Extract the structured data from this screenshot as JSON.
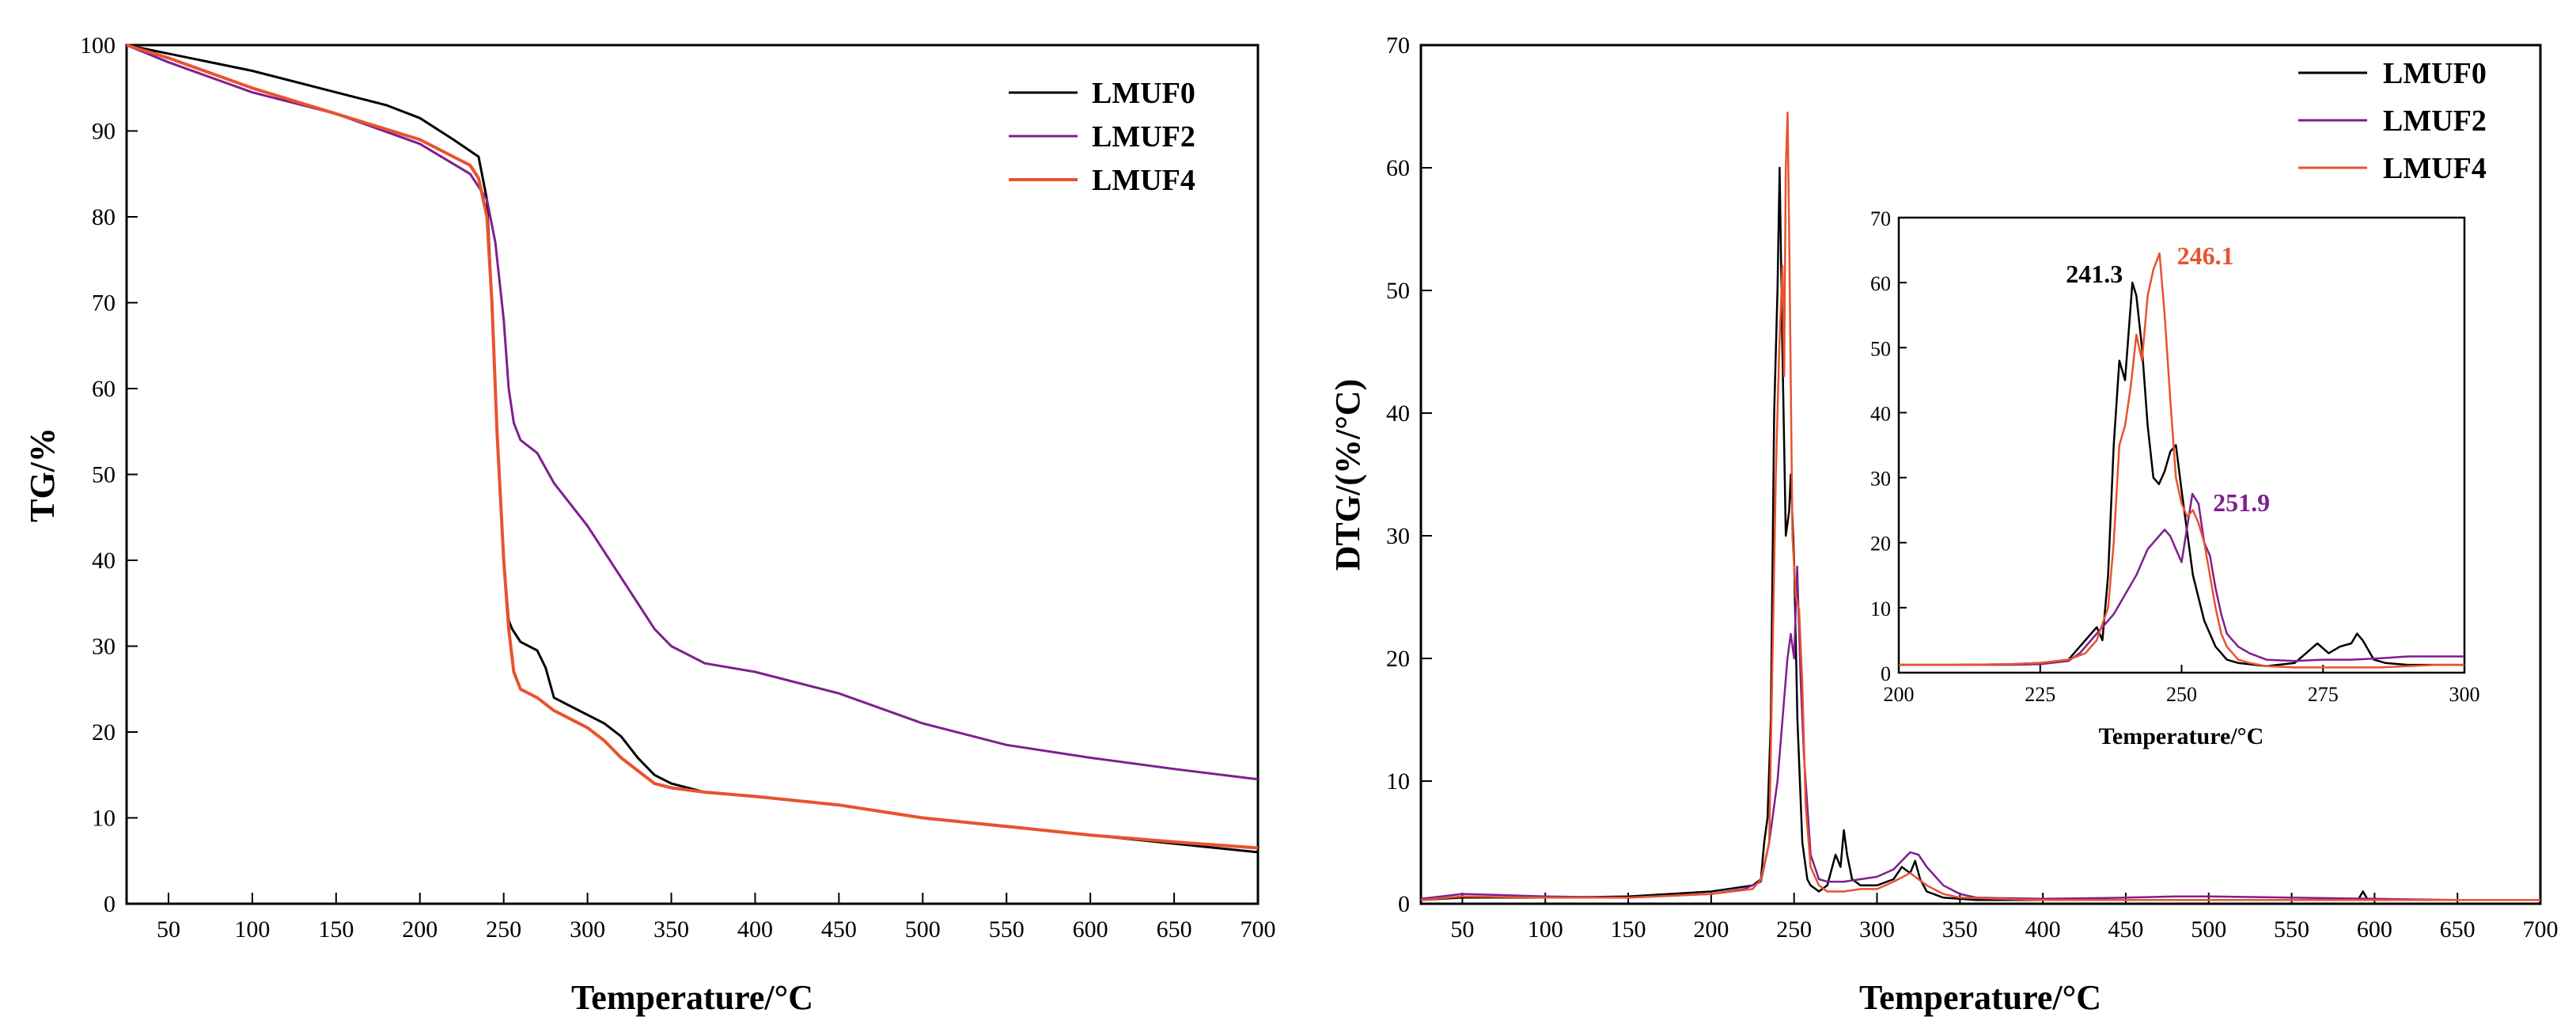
{
  "colors": {
    "LMUF0": "#000000",
    "LMUF2": "#7f1f8f",
    "LMUF4": "#e8532e"
  },
  "chart_data": [
    {
      "id": "tg",
      "type": "line",
      "title": "",
      "xlabel": "Temperature/°C",
      "ylabel": "TG/%",
      "xlim": [
        25,
        700
      ],
      "ylim": [
        0,
        100
      ],
      "xticks": [
        50,
        100,
        150,
        200,
        250,
        300,
        350,
        400,
        450,
        500,
        550,
        600,
        650,
        700
      ],
      "yticks": [
        0,
        10,
        20,
        30,
        40,
        50,
        60,
        70,
        80,
        90,
        100
      ],
      "legend": "top-right",
      "grid": false,
      "series": [
        {
          "name": "LMUF0",
          "x": [
            25,
            50,
            100,
            150,
            180,
            200,
            220,
            235,
            240,
            243,
            246,
            250,
            253,
            255,
            260,
            270,
            275,
            280,
            290,
            300,
            310,
            320,
            330,
            340,
            350,
            370,
            400,
            450,
            500,
            550,
            600,
            650,
            700
          ],
          "y": [
            100,
            99,
            97,
            94.5,
            93,
            91.5,
            89,
            87,
            82,
            70,
            55,
            40,
            33,
            32,
            30.5,
            29.5,
            27.5,
            24,
            23,
            22,
            21,
            19.5,
            17,
            15,
            14,
            13,
            12.5,
            11.5,
            10,
            9,
            8,
            7,
            6
          ]
        },
        {
          "name": "LMUF2",
          "x": [
            25,
            50,
            100,
            150,
            200,
            230,
            240,
            245,
            250,
            253,
            256,
            260,
            270,
            280,
            300,
            320,
            340,
            350,
            370,
            400,
            450,
            500,
            550,
            600,
            650,
            700
          ],
          "y": [
            100,
            98,
            94.5,
            92,
            88.5,
            85,
            82,
            77,
            68,
            60,
            56,
            54,
            52.5,
            49,
            44,
            38,
            32,
            30,
            28,
            27,
            24.5,
            21,
            18.5,
            17,
            15.7,
            14.5
          ]
        },
        {
          "name": "LMUF4",
          "x": [
            25,
            50,
            100,
            150,
            200,
            230,
            235,
            240,
            243,
            246,
            250,
            253,
            256,
            260,
            270,
            280,
            290,
            300,
            310,
            320,
            330,
            340,
            350,
            370,
            400,
            450,
            500,
            550,
            600,
            650,
            700
          ],
          "y": [
            100,
            98.5,
            95,
            92,
            89,
            86,
            84.5,
            80,
            70,
            55,
            40,
            32,
            27,
            25,
            24,
            22.5,
            21.5,
            20.5,
            19,
            17,
            15.5,
            14,
            13.5,
            13,
            12.5,
            11.5,
            10,
            9,
            8,
            7.2,
            6.5
          ]
        }
      ]
    },
    {
      "id": "dtg",
      "type": "line",
      "title": "",
      "xlabel": "Temperature/°C",
      "ylabel": "DTG/(%/°C)",
      "xlim": [
        25,
        700
      ],
      "ylim": [
        0,
        70
      ],
      "xticks": [
        50,
        100,
        150,
        200,
        250,
        300,
        350,
        400,
        450,
        500,
        550,
        600,
        650,
        700
      ],
      "yticks": [
        0,
        10,
        20,
        30,
        40,
        50,
        60,
        70
      ],
      "legend": "top-right",
      "grid": false,
      "series": [
        {
          "name": "LMUF0",
          "x": [
            25,
            50,
            100,
            150,
            200,
            225,
            230,
            232,
            234,
            236,
            238,
            240,
            241.3,
            243,
            245,
            247,
            248,
            250,
            252,
            255,
            258,
            260,
            265,
            270,
            275,
            278,
            280,
            282,
            285,
            290,
            300,
            310,
            315,
            320,
            323,
            326,
            330,
            340,
            350,
            360,
            400,
            450,
            500,
            550,
            590,
            593,
            596,
            600,
            650,
            700
          ],
          "y": [
            0.3,
            0.5,
            0.5,
            0.6,
            1,
            1.5,
            2,
            5,
            7,
            15,
            40,
            50,
            60,
            45,
            30,
            32,
            35,
            28,
            15,
            5,
            2,
            1.5,
            1,
            1.5,
            4,
            3,
            6,
            4,
            2,
            1.5,
            1.5,
            2,
            3,
            2.5,
            3.5,
            2,
            1,
            0.5,
            0.4,
            0.3,
            0.3,
            0.3,
            0.3,
            0.3,
            0.3,
            1,
            0.3,
            0.3,
            0.3,
            0.3
          ]
        },
        {
          "name": "LMUF2",
          "x": [
            25,
            50,
            100,
            150,
            200,
            220,
            230,
            235,
            240,
            243,
            246,
            248,
            250,
            251.9,
            254,
            256,
            258,
            260,
            265,
            270,
            280,
            290,
            300,
            310,
            320,
            325,
            330,
            340,
            350,
            360,
            400,
            450,
            480,
            500,
            550,
            600,
            650,
            700
          ],
          "y": [
            0.4,
            0.8,
            0.6,
            0.5,
            0.8,
            1.2,
            1.8,
            5,
            10,
            15,
            20,
            22,
            20,
            27.5,
            18,
            12,
            8,
            4,
            2,
            1.8,
            1.8,
            2,
            2.2,
            2.8,
            4.2,
            4,
            3,
            1.5,
            0.8,
            0.5,
            0.4,
            0.5,
            0.6,
            0.6,
            0.5,
            0.4,
            0.3,
            0.3
          ]
        },
        {
          "name": "LMUF4",
          "x": [
            25,
            50,
            100,
            150,
            200,
            225,
            230,
            235,
            237,
            239,
            241,
            243,
            244,
            245,
            246.1,
            247,
            249,
            251,
            253,
            255,
            257,
            260,
            265,
            270,
            280,
            290,
            300,
            310,
            320,
            325,
            330,
            340,
            350,
            400,
            450,
            500,
            550,
            600,
            650,
            700
          ],
          "y": [
            0.3,
            0.6,
            0.5,
            0.5,
            0.8,
            1.2,
            2,
            5,
            20,
            35,
            45,
            52,
            43,
            60,
            64.5,
            55,
            30,
            25,
            24,
            18,
            8,
            3,
            1.5,
            1,
            1,
            1.2,
            1.2,
            1.8,
            2.5,
            2,
            1.5,
            0.8,
            0.5,
            0.3,
            0.3,
            0.3,
            0.3,
            0.3,
            0.3,
            0.3
          ]
        }
      ]
    },
    {
      "id": "dtg-inset",
      "type": "line",
      "title": "",
      "xlabel": "Temperature/°C",
      "ylabel": "",
      "xlim": [
        200,
        300
      ],
      "ylim": [
        0,
        70
      ],
      "xticks": [
        200,
        225,
        250,
        275,
        300
      ],
      "yticks": [
        0,
        10,
        20,
        30,
        40,
        50,
        60,
        70
      ],
      "legend": "none",
      "grid": false,
      "annotations": [
        {
          "text": "241.3",
          "series": "LMUF0",
          "x": 241.3,
          "y": 60
        },
        {
          "text": "246.1",
          "series": "LMUF4",
          "x": 246.1,
          "y": 64.5
        },
        {
          "text": "251.9",
          "series": "LMUF2",
          "x": 251.9,
          "y": 27.5
        }
      ],
      "series": [
        {
          "name": "LMUF0",
          "x": [
            200,
            210,
            220,
            225,
            230,
            232,
            234,
            235,
            236,
            237,
            238,
            239,
            240,
            241.3,
            242,
            243,
            244,
            245,
            246,
            247,
            248,
            249,
            250,
            252,
            254,
            256,
            258,
            260,
            265,
            270,
            272,
            274,
            276,
            278,
            280,
            281,
            282,
            284,
            286,
            290,
            295,
            300
          ],
          "y": [
            1.2,
            1.2,
            1.3,
            1.5,
            2,
            4,
            6,
            7,
            5,
            15,
            35,
            48,
            45,
            60,
            58,
            50,
            38,
            30,
            29,
            31,
            34,
            35,
            28,
            15,
            8,
            4,
            2,
            1.5,
            1,
            1.5,
            3,
            4.5,
            3,
            4,
            4.5,
            6,
            5,
            2,
            1.5,
            1.2,
            1.2,
            1.2
          ]
        },
        {
          "name": "LMUF2",
          "x": [
            200,
            210,
            220,
            225,
            230,
            232,
            234,
            236,
            238,
            240,
            242,
            244,
            246,
            247,
            248,
            249,
            250,
            251.9,
            253,
            254,
            255,
            256,
            257,
            258,
            260,
            262,
            265,
            270,
            275,
            280,
            285,
            290,
            295,
            300
          ],
          "y": [
            1.2,
            1.2,
            1.2,
            1.3,
            1.8,
            3,
            5,
            7,
            9,
            12,
            15,
            19,
            21,
            22,
            21,
            19,
            17,
            27.5,
            26,
            20,
            18,
            13,
            9,
            6,
            4,
            3,
            2,
            1.8,
            2,
            2,
            2.2,
            2.5,
            2.5,
            2.5
          ]
        },
        {
          "name": "LMUF4",
          "x": [
            200,
            210,
            220,
            225,
            230,
            233,
            235,
            237,
            238,
            239,
            240,
            241,
            242,
            243,
            244,
            245,
            246.1,
            247,
            248,
            249,
            250,
            251,
            252,
            253,
            254,
            255,
            256,
            257,
            258,
            260,
            262,
            265,
            270,
            275,
            280,
            285,
            290,
            295,
            300
          ],
          "y": [
            1.2,
            1.2,
            1.3,
            1.5,
            2,
            3,
            5,
            10,
            20,
            35,
            38,
            44,
            52,
            48,
            58,
            62,
            64.5,
            55,
            42,
            30,
            26,
            24,
            25,
            23,
            20,
            15,
            10,
            6,
            4,
            2,
            1.5,
            1,
            0.8,
            0.8,
            0.8,
            0.8,
            1,
            1.2,
            1.2
          ]
        }
      ]
    }
  ]
}
